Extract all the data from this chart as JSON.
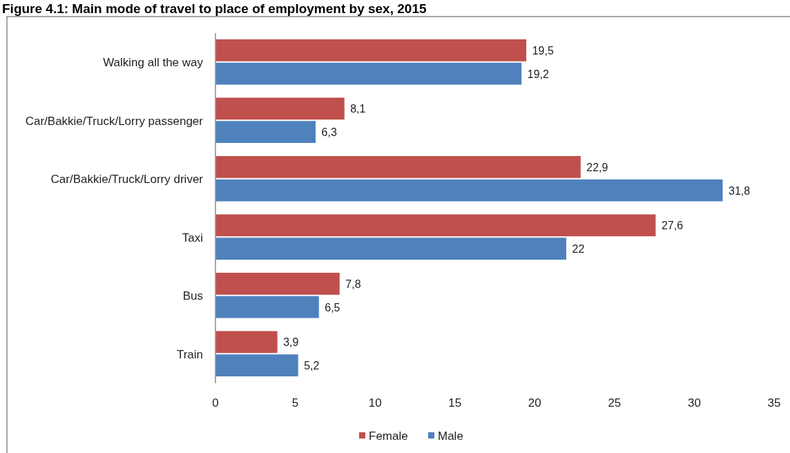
{
  "chart_data": {
    "type": "bar",
    "orientation": "horizontal",
    "title": "Figure 4.1: Main mode of travel to place of employment by sex, 2015",
    "categories": [
      "Walking all the way",
      "Car/Bakkie/Truck/Lorry passenger",
      "Car/Bakkie/Truck/Lorry driver",
      "Taxi",
      "Bus",
      "Train"
    ],
    "series": [
      {
        "name": "Female",
        "color": "#c0504d",
        "values": [
          19.5,
          8.1,
          22.9,
          27.6,
          7.8,
          3.9
        ],
        "value_labels": [
          "19,5",
          "8,1",
          "22,9",
          "27,6",
          "7,8",
          "3,9"
        ]
      },
      {
        "name": "Male",
        "color": "#4f81bd",
        "values": [
          19.2,
          6.3,
          31.8,
          22,
          6.5,
          5.2
        ],
        "value_labels": [
          "19,2",
          "6,3",
          "31,8",
          "22",
          "6,5",
          "5,2"
        ]
      }
    ],
    "xlim": [
      0,
      35
    ],
    "xticks": [
      0,
      5,
      10,
      15,
      20,
      25,
      30,
      35
    ],
    "grid": false,
    "legend": "bottom"
  }
}
